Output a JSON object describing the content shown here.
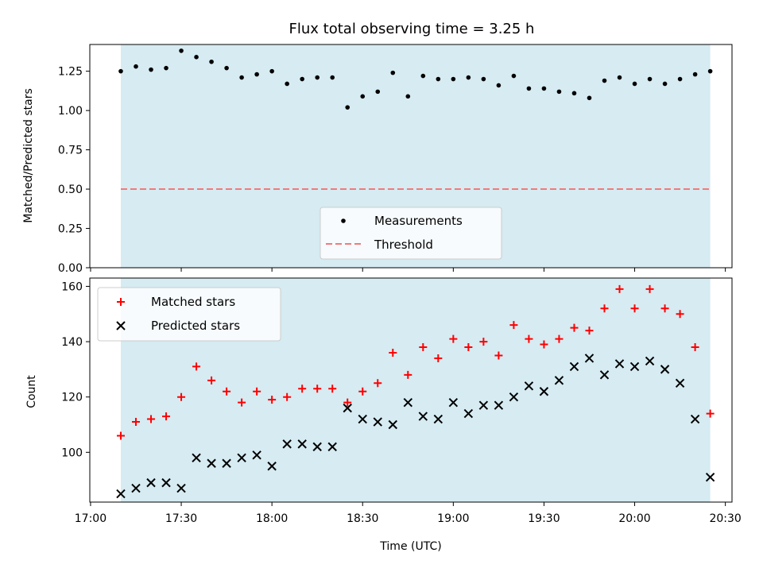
{
  "chart_data": [
    {
      "type": "scatter",
      "title": "Flux total observing time = 3.25 h",
      "ylabel": "Matched/Predicted stars",
      "xlabel": "",
      "ylim": [
        0,
        1.42
      ],
      "yticks": [
        "0.00",
        "0.25",
        "0.50",
        "0.75",
        "1.00",
        "1.25"
      ],
      "ytick_values": [
        0,
        0.25,
        0.5,
        0.75,
        1.0,
        1.25
      ],
      "observing_window": [
        "17:10",
        "20:25"
      ],
      "observing_window_color": "#add8e6",
      "legend": {
        "location": "lower center",
        "entries": [
          "Measurements",
          "Threshold"
        ]
      },
      "series": [
        {
          "name": "Measurements",
          "marker": "dot",
          "color": "#000000",
          "x": [
            "17:10",
            "17:15",
            "17:20",
            "17:25",
            "17:30",
            "17:35",
            "17:40",
            "17:45",
            "17:50",
            "17:55",
            "18:00",
            "18:05",
            "18:10",
            "18:15",
            "18:20",
            "18:25",
            "18:30",
            "18:35",
            "18:40",
            "18:45",
            "18:50",
            "18:55",
            "19:00",
            "19:05",
            "19:10",
            "19:15",
            "19:20",
            "19:25",
            "19:30",
            "19:35",
            "19:40",
            "19:45",
            "19:50",
            "19:55",
            "20:00",
            "20:05",
            "20:10",
            "20:15",
            "20:20",
            "20:25"
          ],
          "values": [
            1.25,
            1.28,
            1.26,
            1.27,
            1.38,
            1.34,
            1.31,
            1.27,
            1.21,
            1.23,
            1.25,
            1.17,
            1.2,
            1.21,
            1.21,
            1.02,
            1.09,
            1.12,
            1.24,
            1.09,
            1.22,
            1.2,
            1.2,
            1.21,
            1.2,
            1.16,
            1.22,
            1.14,
            1.14,
            1.12,
            1.11,
            1.08,
            1.19,
            1.21,
            1.17,
            1.2,
            1.17,
            1.2,
            1.23,
            1.25
          ]
        },
        {
          "name": "Threshold",
          "style": "dashed",
          "color": "#f27a7a",
          "value": 0.5
        }
      ]
    },
    {
      "type": "scatter",
      "title": "",
      "ylabel": "Count",
      "xlabel": "Time (UTC)",
      "ylim": [
        82,
        163
      ],
      "yticks": [
        "100",
        "120",
        "140",
        "160"
      ],
      "ytick_values": [
        100,
        120,
        140,
        160
      ],
      "xticks": [
        "17:00",
        "17:30",
        "18:00",
        "18:30",
        "19:00",
        "19:30",
        "20:00",
        "20:30"
      ],
      "observing_window": [
        "17:10",
        "20:25"
      ],
      "observing_window_color": "#add8e6",
      "legend": {
        "location": "upper left",
        "entries": [
          "Matched stars",
          "Predicted stars"
        ]
      },
      "series": [
        {
          "name": "Matched stars",
          "marker": "plus",
          "color": "#ff0000",
          "x": [
            "17:10",
            "17:15",
            "17:20",
            "17:25",
            "17:30",
            "17:35",
            "17:40",
            "17:45",
            "17:50",
            "17:55",
            "18:00",
            "18:05",
            "18:10",
            "18:15",
            "18:20",
            "18:25",
            "18:30",
            "18:35",
            "18:40",
            "18:45",
            "18:50",
            "18:55",
            "19:00",
            "19:05",
            "19:10",
            "19:15",
            "19:20",
            "19:25",
            "19:30",
            "19:35",
            "19:40",
            "19:45",
            "19:50",
            "19:55",
            "20:00",
            "20:05",
            "20:10",
            "20:15",
            "20:20",
            "20:25"
          ],
          "values": [
            106,
            111,
            112,
            113,
            120,
            131,
            126,
            122,
            118,
            122,
            119,
            120,
            123,
            123,
            123,
            118,
            122,
            125,
            136,
            128,
            138,
            134,
            141,
            138,
            140,
            135,
            146,
            141,
            139,
            141,
            145,
            144,
            152,
            159,
            152,
            159,
            152,
            150,
            138,
            114
          ]
        },
        {
          "name": "Predicted stars",
          "marker": "x",
          "color": "#000000",
          "x": [
            "17:10",
            "17:15",
            "17:20",
            "17:25",
            "17:30",
            "17:35",
            "17:40",
            "17:45",
            "17:50",
            "17:55",
            "18:00",
            "18:05",
            "18:10",
            "18:15",
            "18:20",
            "18:25",
            "18:30",
            "18:35",
            "18:40",
            "18:45",
            "18:50",
            "18:55",
            "19:00",
            "19:05",
            "19:10",
            "19:15",
            "19:20",
            "19:25",
            "19:30",
            "19:35",
            "19:40",
            "19:45",
            "19:50",
            "19:55",
            "20:00",
            "20:05",
            "20:10",
            "20:15",
            "20:20",
            "20:25"
          ],
          "values": [
            85,
            87,
            89,
            89,
            87,
            98,
            96,
            96,
            98,
            99,
            95,
            103,
            103,
            102,
            102,
            116,
            112,
            111,
            110,
            118,
            113,
            112,
            118,
            114,
            117,
            117,
            120,
            124,
            122,
            126,
            131,
            134,
            128,
            132,
            131,
            133,
            130,
            125,
            112,
            91
          ]
        }
      ]
    }
  ]
}
